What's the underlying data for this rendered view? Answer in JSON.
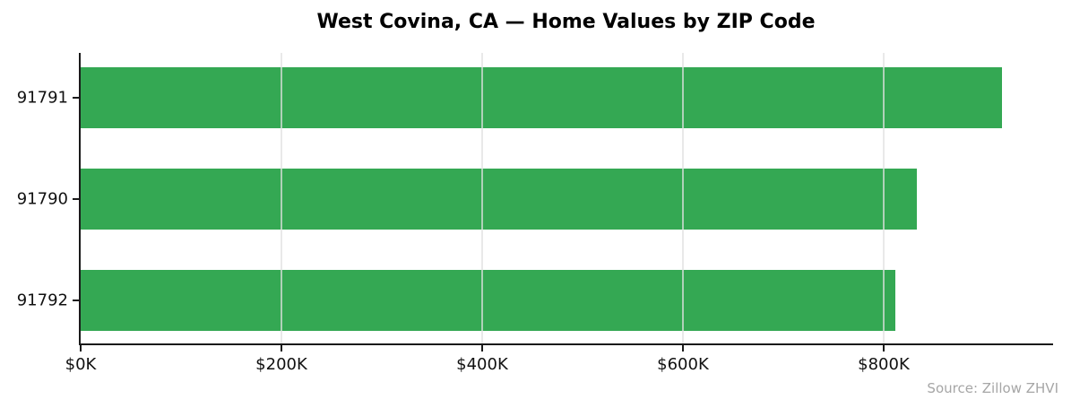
{
  "chart_data": {
    "type": "bar",
    "orientation": "horizontal",
    "title": "West Covina, CA — Home Values by ZIP Code",
    "source_note": "Source: Zillow ZHVI",
    "categories": [
      "91791",
      "91790",
      "91792"
    ],
    "values": [
      918000,
      833000,
      812000
    ],
    "x_tick_values": [
      0,
      200000,
      400000,
      600000,
      800000
    ],
    "x_tick_labels": [
      "$0K",
      "$200K",
      "$400K",
      "$600K",
      "$800K"
    ],
    "xlim": [
      0,
      967000
    ],
    "xlabel": "",
    "ylabel": "",
    "legend": "none",
    "grid": "vertical gridlines drawn over bars",
    "bar_color": "#34a853",
    "axis_color": "#1a1a1a",
    "gridline_color": "#e1e1e1",
    "title_color": "#000000",
    "tick_label_color": "#111111",
    "source_note_color": "#a6a6a6"
  }
}
